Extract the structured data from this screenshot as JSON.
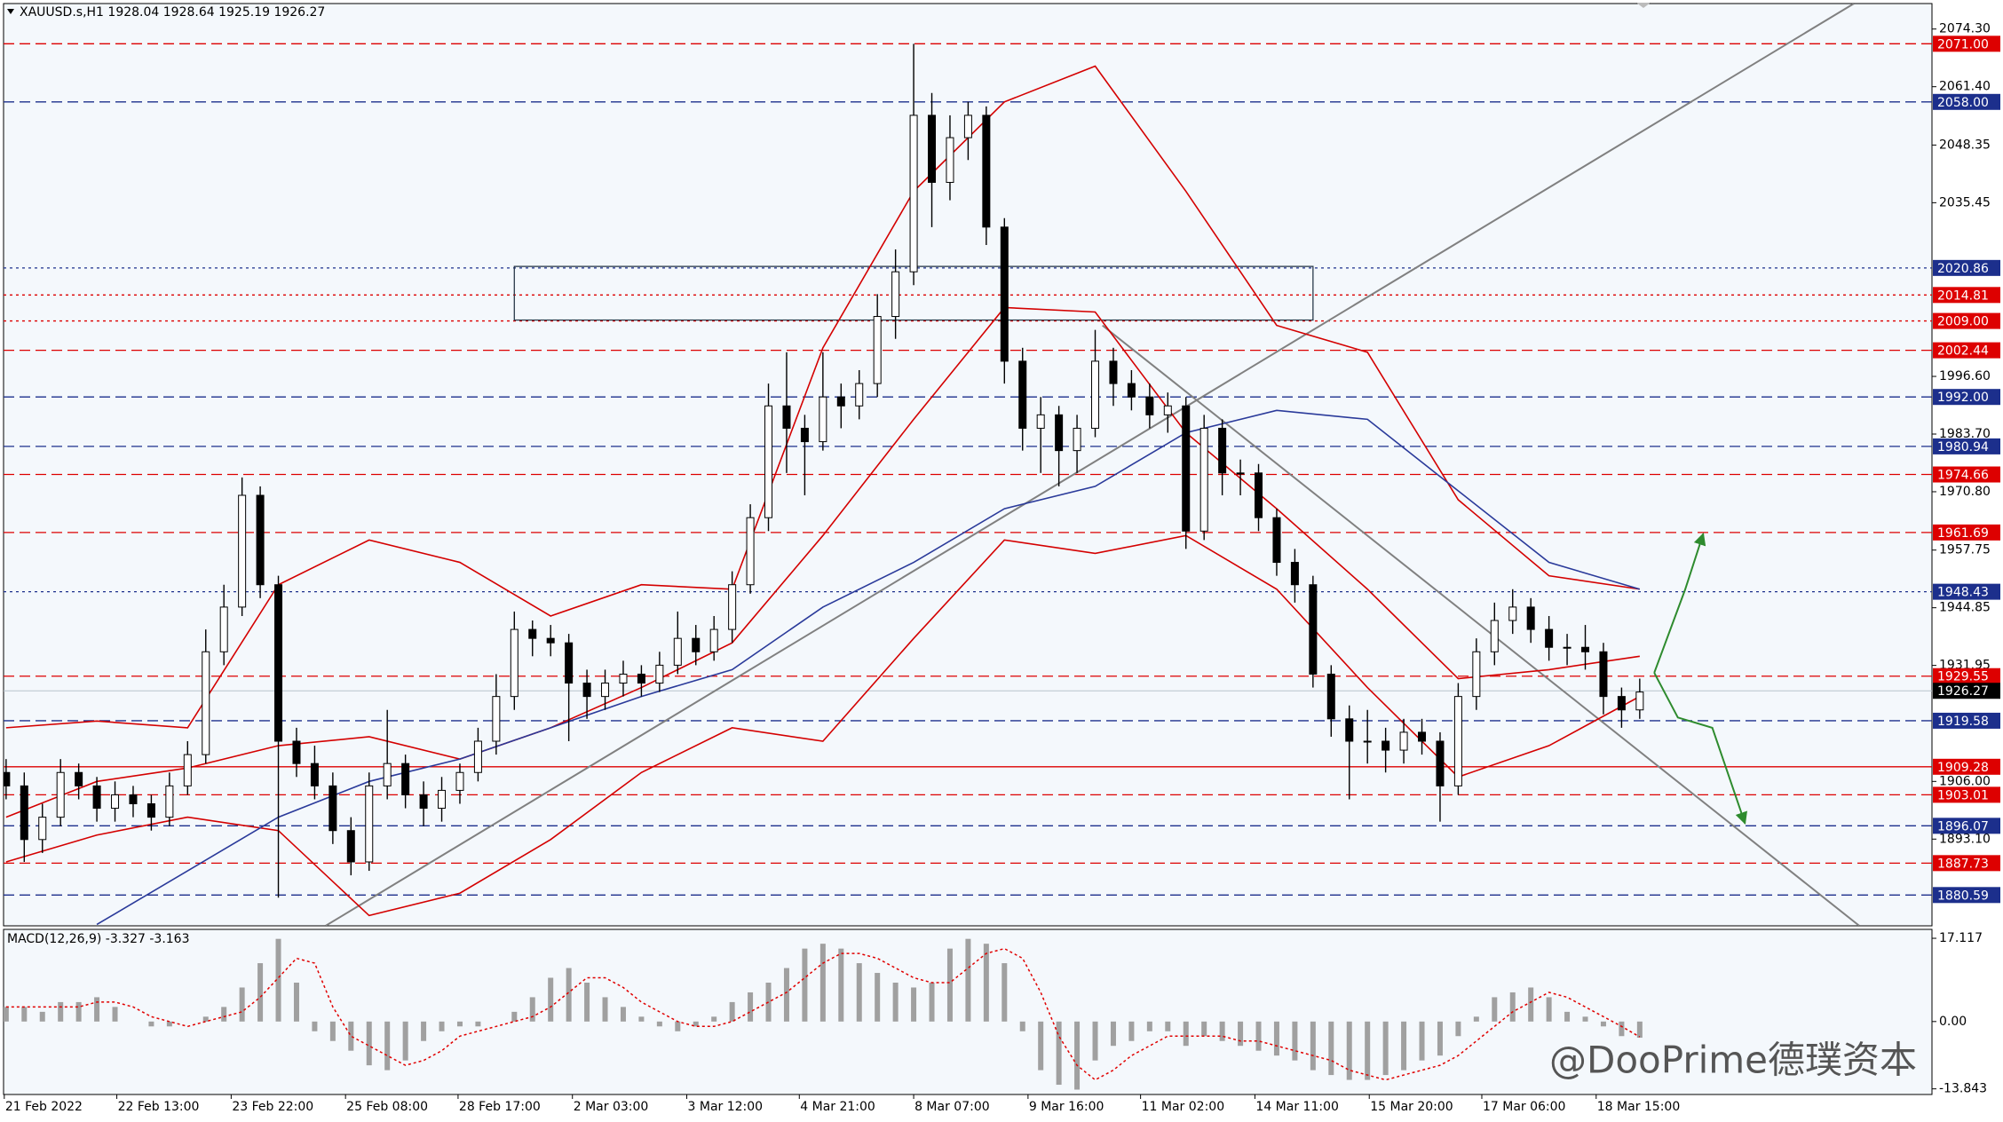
{
  "chart_data": [
    {
      "type": "candlestick",
      "title": "XAUUSD.s,H1  1928.04 1928.64 1925.19 1926.27",
      "xlim": [
        0.86,
        107.1
      ],
      "ylim": [
        1873.7,
        2080.0
      ],
      "yticks": [
        {
          "value": 2074.3,
          "label": "2074.30"
        },
        {
          "value": 2061.4,
          "label": "2061.40"
        },
        {
          "value": 2048.35,
          "label": "2048.35"
        },
        {
          "value": 2035.45,
          "label": "2035.45"
        },
        {
          "value": 1996.6,
          "label": "1996.60"
        },
        {
          "value": 1983.7,
          "label": "1983.70"
        },
        {
          "value": 1970.8,
          "label": "1970.80"
        },
        {
          "value": 1957.75,
          "label": "1957.75"
        },
        {
          "value": 1944.85,
          "label": "1944.85"
        },
        {
          "value": 1931.95,
          "label": "1931.95"
        },
        {
          "value": 1906,
          "label": "1906.00"
        },
        {
          "value": 1893.1,
          "label": "1893.10"
        }
      ],
      "up_color": "#ffffff",
      "down_color": "#000000",
      "x": [
        1,
        2,
        3,
        4,
        5,
        6,
        7,
        8,
        9,
        10,
        11,
        12,
        13,
        14,
        15,
        16,
        17,
        18,
        19,
        20,
        21,
        22,
        23,
        24,
        25,
        26,
        27,
        28,
        29,
        30,
        31,
        32,
        33,
        34,
        35,
        36,
        37,
        38,
        39,
        40,
        41,
        42,
        43,
        44,
        45,
        46,
        47,
        48,
        49,
        50,
        51,
        52,
        53,
        54,
        55,
        56,
        57,
        58,
        59,
        60,
        61,
        62,
        63,
        64,
        65,
        66,
        67,
        68,
        69,
        70,
        71,
        72,
        73,
        74,
        75,
        76,
        77,
        78,
        79,
        80,
        81,
        82,
        83,
        84,
        85,
        86,
        87,
        88,
        89,
        90,
        91
      ],
      "open": [
        1908,
        1905,
        1893,
        1898,
        1908,
        1905,
        1900,
        1903,
        1901,
        1898,
        1905,
        1912,
        1935,
        1945,
        1970,
        1950,
        1915,
        1910,
        1905,
        1895,
        1888,
        1905,
        1910,
        1903,
        1900,
        1904,
        1908,
        1915,
        1925,
        1940,
        1938,
        1937,
        1928,
        1925,
        1928,
        1930,
        1928,
        1932,
        1938,
        1935,
        1940,
        1950,
        1965,
        1990,
        1985,
        1982,
        1992,
        1990,
        1995,
        2010,
        2020,
        2055,
        2040,
        2050,
        2055,
        2030,
        2000,
        1985,
        1988,
        1980,
        1985,
        2000,
        1995,
        1992,
        1988,
        1990,
        1962,
        1985,
        1975,
        1975,
        1965,
        1955,
        1950,
        1930,
        1920,
        1915,
        1915,
        1913,
        1917,
        1915,
        1905,
        1925,
        1935,
        1942,
        1945,
        1940,
        1936,
        1936,
        1935,
        1925,
        1922
      ],
      "high": [
        1911,
        1908,
        1901,
        1911,
        1910,
        1907,
        1906,
        1905,
        1903,
        1908,
        1915,
        1940,
        1950,
        1974,
        1972,
        1952,
        1918,
        1914,
        1908,
        1898,
        1908,
        1922,
        1912,
        1906,
        1907,
        1910,
        1918,
        1930,
        1944,
        1942,
        1941,
        1939,
        1931,
        1931,
        1933,
        1932,
        1935,
        1944,
        1941,
        1943,
        1953,
        1968,
        1995,
        2002,
        1988,
        2002,
        1995,
        1998,
        2015,
        2025,
        2071,
        2060,
        2055,
        2058,
        2057,
        2032,
        2003,
        1992,
        1990,
        1988,
        2007,
        2003,
        1998,
        1995,
        1993,
        1992,
        1988,
        1987,
        1978,
        1977,
        1967,
        1958,
        1952,
        1932,
        1923,
        1922,
        1918,
        1920,
        1920,
        1917,
        1928,
        1938,
        1946,
        1949,
        1947,
        1943,
        1939,
        1941,
        1937,
        1927,
        1929
      ],
      "low": [
        1902,
        1888,
        1890,
        1896,
        1902,
        1897,
        1897,
        1898,
        1895,
        1896,
        1903,
        1910,
        1932,
        1943,
        1947,
        1880,
        1907,
        1902,
        1892,
        1885,
        1886,
        1902,
        1900,
        1896,
        1897,
        1901,
        1906,
        1912,
        1922,
        1934,
        1934,
        1915,
        1920,
        1922,
        1925,
        1925,
        1926,
        1930,
        1932,
        1933,
        1937,
        1948,
        1962,
        1975,
        1970,
        1980,
        1985,
        1987,
        1992,
        2005,
        2017,
        2030,
        2036,
        2045,
        2026,
        1995,
        1980,
        1975,
        1972,
        1975,
        1983,
        1990,
        1989,
        1985,
        1984,
        1958,
        1960,
        1970,
        1970,
        1962,
        1952,
        1946,
        1927,
        1916,
        1902,
        1910,
        1908,
        1910,
        1912,
        1897,
        1903,
        1922,
        1932,
        1939,
        1937,
        1933,
        1932,
        1931,
        1921,
        1918,
        1920
      ],
      "close": [
        1905,
        1893,
        1898,
        1908,
        1905,
        1900,
        1903,
        1901,
        1898,
        1905,
        1912,
        1935,
        1945,
        1970,
        1950,
        1915,
        1910,
        1905,
        1895,
        1888,
        1905,
        1910,
        1903,
        1900,
        1904,
        1908,
        1915,
        1925,
        1940,
        1938,
        1937,
        1928,
        1925,
        1928,
        1930,
        1928,
        1932,
        1938,
        1935,
        1940,
        1950,
        1965,
        1990,
        1985,
        1982,
        1992,
        1990,
        1995,
        2010,
        2020,
        2055,
        2040,
        2050,
        2055,
        2030,
        2000,
        1985,
        1988,
        1980,
        1985,
        2000,
        1995,
        1992,
        1988,
        1990,
        1962,
        1985,
        1975,
        1975,
        1965,
        1955,
        1950,
        1930,
        1920,
        1915,
        1915,
        1913,
        1917,
        1915,
        1905,
        1925,
        1935,
        1942,
        1945,
        1940,
        1936,
        1936,
        1935,
        1925,
        1922,
        1926
      ],
      "series": [
        {
          "color": "#d40000",
          "x": [
            1,
            6,
            11,
            16,
            21,
            26,
            31,
            36,
            41,
            46,
            51,
            56,
            61,
            66,
            71,
            76,
            81,
            86,
            91
          ],
          "values": [
            1918,
            1919.5,
            1918,
            1950,
            1960,
            1955,
            1943,
            1950,
            1949,
            2003,
            2038,
            2058,
            2066,
            2038,
            2008,
            2002,
            1969,
            1952,
            1949
          ]
        },
        {
          "color": "#d40000",
          "x": [
            1,
            6,
            11,
            16,
            21,
            26,
            31,
            36,
            41,
            46,
            51,
            56,
            61,
            66,
            71,
            76,
            81,
            86,
            91
          ],
          "values": [
            1898,
            1906,
            1909,
            1914,
            1916,
            1911,
            1918,
            1927,
            1937,
            1961,
            1987,
            2012,
            2011,
            1984,
            1967,
            1949,
            1929,
            1931,
            1934
          ]
        },
        {
          "color": "#d40000",
          "x": [
            1,
            6,
            11,
            16,
            21,
            26,
            31,
            36,
            41,
            46,
            51,
            56,
            61,
            66,
            71,
            76,
            81,
            86,
            91
          ],
          "values": [
            1888,
            1894,
            1898,
            1895,
            1876,
            1881,
            1893,
            1908,
            1918,
            1915,
            1938,
            1960,
            1957,
            1961,
            1949,
            1927,
            1907,
            1914,
            1925
          ]
        },
        {
          "color": "#2a3a9a",
          "x": [
            6,
            11,
            16,
            21,
            26,
            31,
            36,
            41,
            46,
            51,
            56,
            61,
            66,
            71,
            76,
            81,
            86,
            91
          ],
          "values": [
            1874,
            1886,
            1898,
            1906,
            1911,
            1918,
            1925,
            1931,
            1945,
            1955,
            1967,
            1972,
            1984,
            1989,
            1987,
            1971,
            1955,
            1949
          ]
        }
      ],
      "levels": [
        {
          "value": 2071,
          "label": "2071.00",
          "color": "#dd0000",
          "dash": "dash"
        },
        {
          "value": 2058,
          "label": "2058.00",
          "color": "#1c2f8c",
          "dash": "dash"
        },
        {
          "value": 2020.86,
          "label": "2020.86",
          "color": "#1c2f8c",
          "dash": "dot"
        },
        {
          "value": 2014.81,
          "label": "2014.81",
          "color": "#dd0000",
          "dash": "dot"
        },
        {
          "value": 2009,
          "label": "2009.00",
          "color": "#dd0000",
          "dash": "dot"
        },
        {
          "value": 2002.44,
          "label": "2002.44",
          "color": "#dd0000",
          "dash": "dash"
        },
        {
          "value": 1992,
          "label": "1992.00",
          "color": "#1c2f8c",
          "dash": "dash"
        },
        {
          "value": 1980.94,
          "label": "1980.94",
          "color": "#1c2f8c",
          "dash": "dash"
        },
        {
          "value": 1974.66,
          "label": "1974.66",
          "color": "#dd0000",
          "dash": "dash"
        },
        {
          "value": 1961.69,
          "label": "1961.69",
          "color": "#dd0000",
          "dash": "dash"
        },
        {
          "value": 1948.43,
          "label": "1948.43",
          "color": "#1c2f8c",
          "dash": "dot"
        },
        {
          "value": 1929.55,
          "label": "1929.55",
          "color": "#dd0000",
          "dash": "dash"
        },
        {
          "value": 1926.27,
          "label": "1926.27",
          "color": "#000000",
          "dash": "solid"
        },
        {
          "value": 1919.58,
          "label": "1919.58",
          "color": "#1c2f8c",
          "dash": "dash"
        },
        {
          "value": 1909.28,
          "label": "1909.28",
          "color": "#dd0000",
          "dash": "solid"
        },
        {
          "value": 1903.01,
          "label": "1903.01",
          "color": "#dd0000",
          "dash": "dash"
        },
        {
          "value": 1896.07,
          "label": "1896.07",
          "color": "#1c2f8c",
          "dash": "dash"
        },
        {
          "value": 1887.73,
          "label": "1887.73",
          "color": "#dd0000",
          "dash": "dash"
        },
        {
          "value": 1880.59,
          "label": "1880.59",
          "color": "#1c2f8c",
          "dash": "dash"
        }
      ],
      "zone": {
        "x0": 29.0,
        "x1": 73.0,
        "y0": 2009.2,
        "y1": 2021.2
      },
      "trendlines": [
        {
          "color": "#808080",
          "x": [
            18.6,
            102.8
          ],
          "y": [
            1873.7,
            2080.0
          ]
        },
        {
          "color": "#808080",
          "x": [
            61.4,
            103.1
          ],
          "y": [
            2008.0,
            1873.7
          ]
        }
      ],
      "arrows": [
        {
          "color": "#2e8b2e",
          "x": [
            91.8,
            93.5,
            94.5
          ],
          "y": [
            1930.3,
            1948.9,
            1961.4
          ]
        },
        {
          "color": "#2e8b2e",
          "x": [
            91.8,
            93.1,
            95.0,
            96.8
          ],
          "y": [
            1930.3,
            1920.3,
            1918.0,
            1896.6
          ]
        }
      ]
    },
    {
      "type": "macd",
      "title": "MACD(12,26,9) -3.327 -3.163",
      "watermark": "@DooPrime德璞资本",
      "xlim": [
        0.86,
        107.1
      ],
      "ylim": [
        -15.0,
        18.95
      ],
      "yticks": [
        {
          "value": 17.117,
          "label": "17.117"
        },
        {
          "value": 0,
          "label": "0.00"
        },
        {
          "value": -13.843,
          "label": "-13.843"
        }
      ],
      "xticks": [
        {
          "value": 0.9,
          "label": "21 Feb 2022"
        },
        {
          "value": 7.1,
          "label": "22 Feb 13:00"
        },
        {
          "value": 13.4,
          "label": "23 Feb 22:00"
        },
        {
          "value": 19.7,
          "label": "25 Feb 08:00"
        },
        {
          "value": 25.9,
          "label": "28 Feb 17:00"
        },
        {
          "value": 32.2,
          "label": "2 Mar 03:00"
        },
        {
          "value": 38.5,
          "label": "3 Mar 12:00"
        },
        {
          "value": 44.7,
          "label": "4 Mar 21:00"
        },
        {
          "value": 51.0,
          "label": "8 Mar 07:00"
        },
        {
          "value": 57.3,
          "label": "9 Mar 16:00"
        },
        {
          "value": 63.5,
          "label": "11 Mar 02:00"
        },
        {
          "value": 69.8,
          "label": "14 Mar 11:00"
        },
        {
          "value": 76.1,
          "label": "15 Mar 20:00"
        },
        {
          "value": 82.3,
          "label": "17 Mar 06:00"
        },
        {
          "value": 88.6,
          "label": "18 Mar 15:00"
        }
      ],
      "x": [
        1,
        2,
        3,
        4,
        5,
        6,
        7,
        8,
        9,
        10,
        11,
        12,
        13,
        14,
        15,
        16,
        17,
        18,
        19,
        20,
        21,
        22,
        23,
        24,
        25,
        26,
        27,
        28,
        29,
        30,
        31,
        32,
        33,
        34,
        35,
        36,
        37,
        38,
        39,
        40,
        41,
        42,
        43,
        44,
        45,
        46,
        47,
        48,
        49,
        50,
        51,
        52,
        53,
        54,
        55,
        56,
        57,
        58,
        59,
        60,
        61,
        62,
        63,
        64,
        65,
        66,
        67,
        68,
        69,
        70,
        71,
        72,
        73,
        74,
        75,
        76,
        77,
        78,
        79,
        80,
        81,
        82,
        83,
        84,
        85,
        86,
        87,
        88,
        89,
        90,
        91
      ],
      "series": [
        {
          "color": "#a0a0a0",
          "values": [
            3,
            3,
            2,
            4,
            4,
            5,
            3,
            0,
            -1,
            -1,
            0,
            1,
            3,
            7,
            12,
            17,
            8,
            -2,
            -4,
            -6,
            -9,
            -10,
            -8,
            -4,
            -2,
            -1,
            -1,
            0,
            2,
            5,
            9,
            11,
            8,
            5,
            3,
            1,
            -1,
            -2,
            -1,
            1,
            4,
            6,
            8,
            11,
            15,
            16,
            15,
            12,
            10,
            8,
            7,
            8,
            15,
            17,
            16,
            12,
            -2,
            -10,
            -13,
            -14,
            -8,
            -5,
            -4,
            -2,
            -2,
            -5,
            -3,
            -4,
            -5,
            -6,
            -7,
            -8,
            -10,
            -11,
            -12,
            -12,
            -11,
            -10,
            -8,
            -7,
            -3,
            1,
            5,
            6,
            7,
            5,
            2,
            1,
            -1,
            -3,
            -3.327
          ]
        },
        {
          "color": "#e00000",
          "values": [
            3,
            3,
            3,
            3,
            3,
            4,
            4,
            3,
            1,
            0,
            -1,
            0,
            1,
            2,
            5,
            9,
            13,
            12,
            3,
            -3,
            -5,
            -7,
            -9,
            -8,
            -6,
            -3,
            -2,
            -1,
            0,
            1,
            3,
            6,
            9,
            9,
            7,
            4,
            2,
            0,
            -1,
            -1,
            0,
            2,
            4,
            6,
            9,
            12,
            14,
            14,
            13,
            11,
            9,
            8,
            8,
            11,
            14,
            15,
            13,
            6,
            -3,
            -9,
            -12,
            -10,
            -7,
            -5,
            -3,
            -3,
            -3,
            -3,
            -4,
            -4,
            -5,
            -6,
            -7,
            -8,
            -10,
            -11,
            -12,
            -11,
            -10,
            -9,
            -7,
            -4,
            -1,
            2,
            4,
            6,
            5,
            3,
            1,
            -1,
            -3.163
          ]
        }
      ]
    }
  ]
}
